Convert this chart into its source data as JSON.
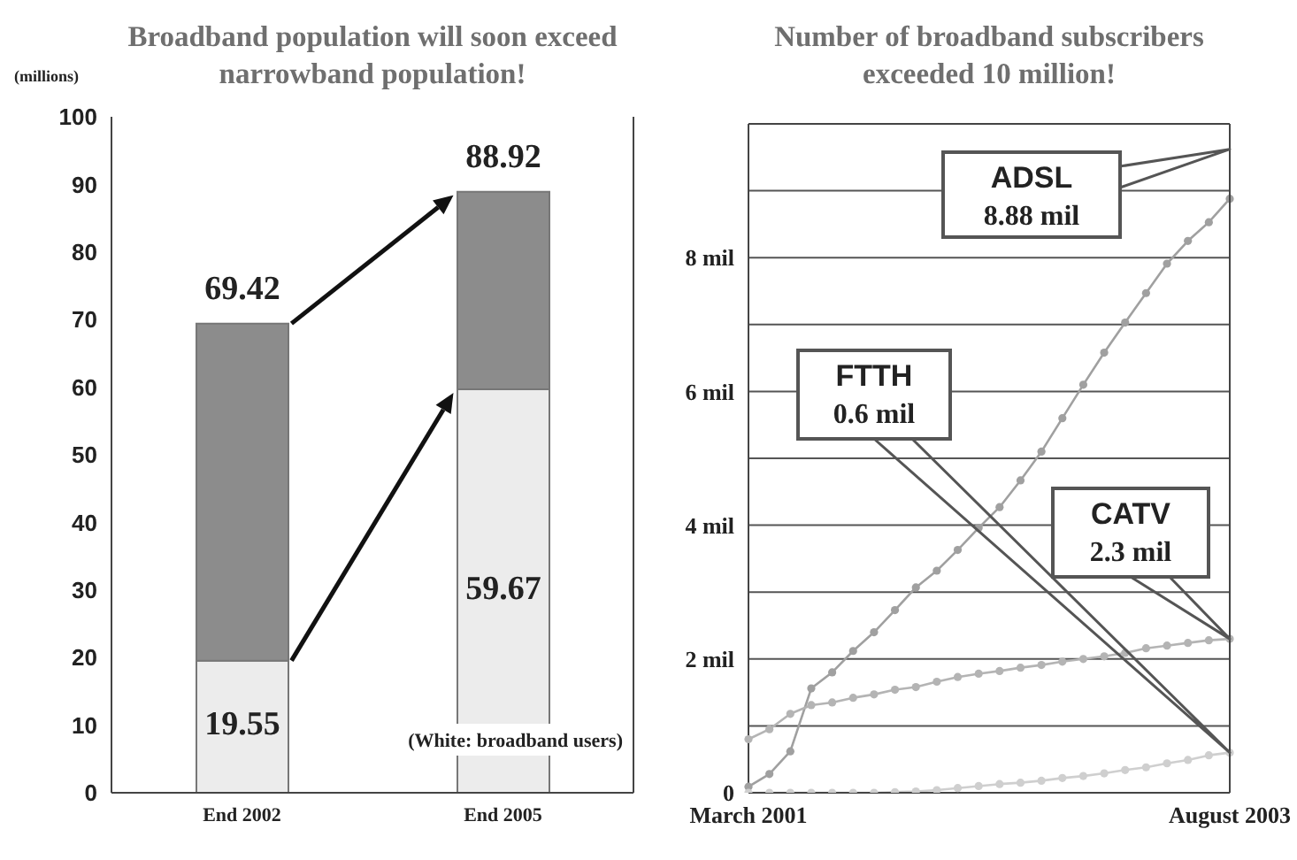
{
  "chart_data": [
    {
      "type": "bar",
      "title": "Broadband population will soon exceed narrowband population!",
      "ylabel": "(millions)",
      "categories": [
        "End 2002",
        "End 2005"
      ],
      "stacked": true,
      "series": [
        {
          "color": "#ececec",
          "values": [
            19.55,
            59.67
          ],
          "value_labels": [
            "19.55",
            "59.67"
          ]
        },
        {
          "color": "#8c8c8c",
          "values": [
            49.87,
            29.25
          ]
        }
      ],
      "totals": [
        "69.42",
        "88.92"
      ],
      "ylim": [
        0,
        100
      ],
      "yticks": [
        0,
        10,
        20,
        30,
        40,
        50,
        60,
        70,
        80,
        90,
        100
      ],
      "annotations": [
        "(White: broadband users)"
      ]
    },
    {
      "type": "line",
      "title": "Number of broadband subscribers exceeded 10 million!",
      "categories": [
        "March 2001",
        null,
        null,
        null,
        null,
        null,
        null,
        null,
        null,
        null,
        null,
        null,
        null,
        null,
        null,
        null,
        null,
        null,
        null,
        null,
        null,
        null,
        null,
        "August 2003"
      ],
      "series": [
        {
          "color": "#a0a0a0",
          "values": [
            0.09,
            0.28,
            0.62,
            1.56,
            1.8,
            2.12,
            2.4,
            2.73,
            3.07,
            3.32,
            3.63,
            3.96,
            4.27,
            4.67,
            5.1,
            5.6,
            6.1,
            6.58,
            7.03,
            7.47,
            7.91,
            8.25,
            8.53,
            8.88
          ]
        },
        {
          "color": "#b4b4b4",
          "values": [
            0.8,
            0.95,
            1.18,
            1.31,
            1.35,
            1.42,
            1.47,
            1.54,
            1.58,
            1.66,
            1.73,
            1.78,
            1.82,
            1.87,
            1.91,
            1.96,
            2.0,
            2.04,
            2.09,
            2.16,
            2.2,
            2.24,
            2.28,
            2.3
          ]
        },
        {
          "color": "#cfcfcf",
          "values": [
            0,
            0,
            0,
            0,
            0,
            0,
            0,
            0.01,
            0.02,
            0.04,
            0.07,
            0.1,
            0.13,
            0.15,
            0.18,
            0.22,
            0.25,
            0.29,
            0.34,
            0.38,
            0.44,
            0.49,
            0.56,
            0.6
          ]
        }
      ],
      "ylim": [
        0,
        10
      ],
      "yticks": [
        0,
        {
          "value": 1,
          "label": null
        },
        {
          "value": 2,
          "label": "2 mil"
        },
        {
          "value": 3,
          "label": null
        },
        {
          "value": 4,
          "label": "4 mil"
        },
        {
          "value": 5,
          "label": null
        },
        {
          "value": 6,
          "label": "6 mil"
        },
        {
          "value": 7,
          "label": null
        },
        {
          "value": 8,
          "label": "8 mil"
        },
        {
          "value": 9,
          "label": null
        },
        {
          "value": 10,
          "label": null
        }
      ],
      "grid": "y",
      "marker": "circle",
      "annotations": [
        "ADSL\n8.88 mil",
        "FTTH\n0.6 mil",
        "CATV\n2.3 mil"
      ]
    }
  ]
}
